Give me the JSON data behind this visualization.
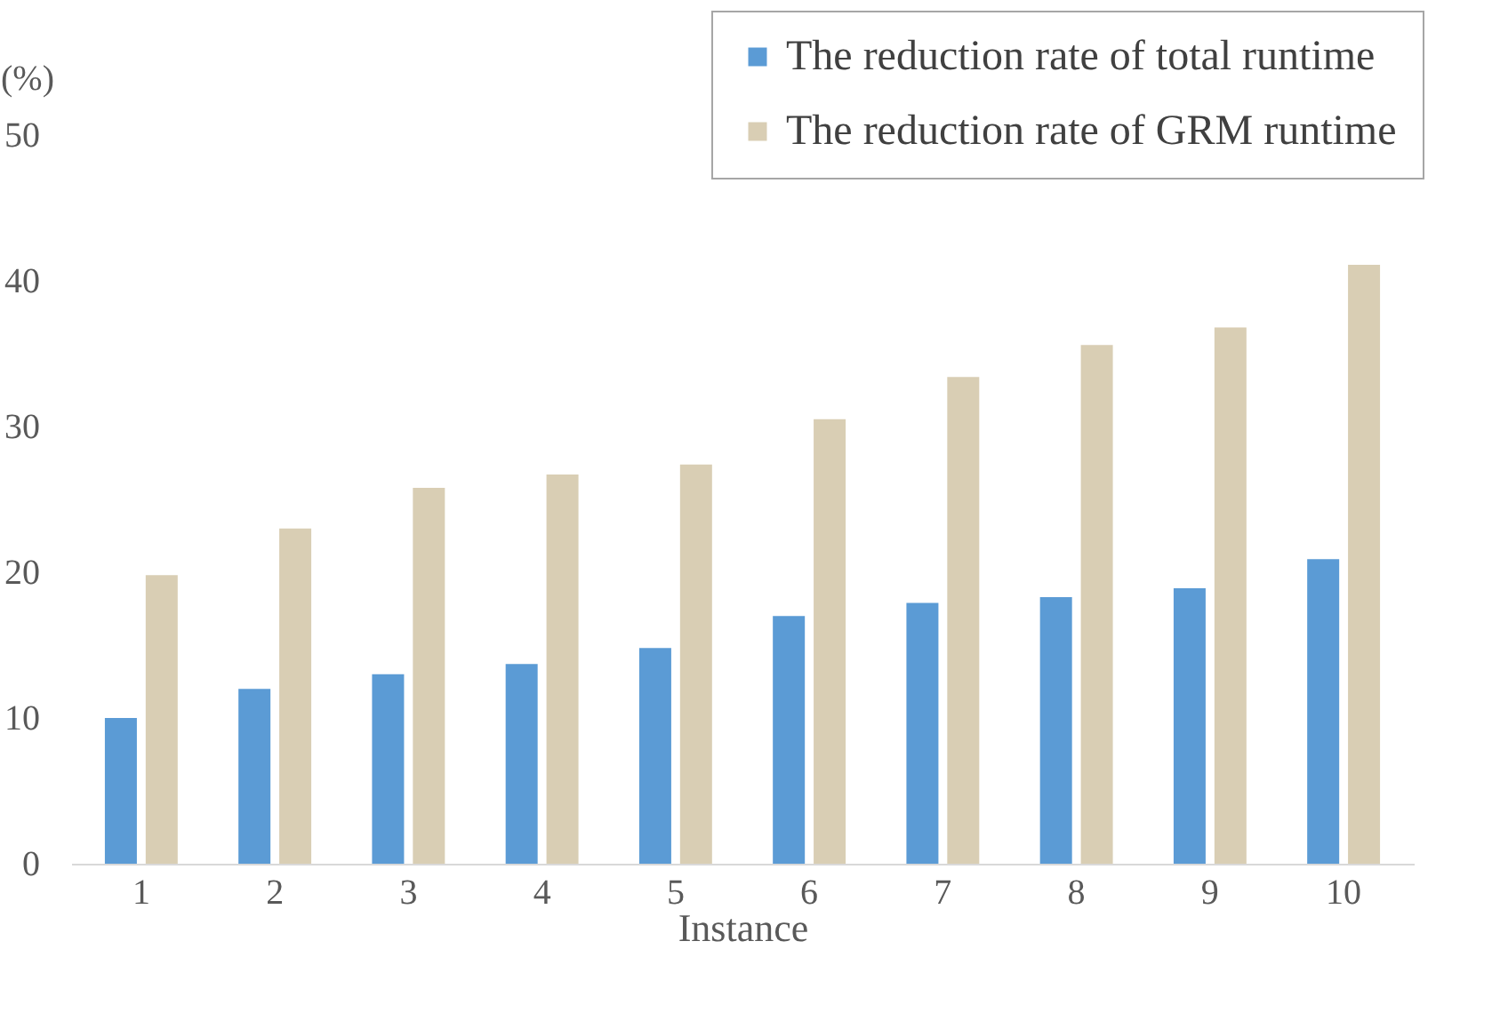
{
  "chart_data": {
    "type": "bar",
    "xlabel": "Instance",
    "ylabel": "(%)",
    "categories": [
      "1",
      "2",
      "3",
      "4",
      "5",
      "6",
      "7",
      "8",
      "9",
      "10"
    ],
    "series": [
      {
        "name": "The reduction rate of total runtime",
        "color": "#5b9bd5",
        "values": [
          10.0,
          12.0,
          13.0,
          13.7,
          14.8,
          17.0,
          17.9,
          18.3,
          18.9,
          20.9
        ]
      },
      {
        "name": "The reduction rate of GRM runtime",
        "color": "#d9ceb4",
        "values": [
          19.8,
          23.0,
          25.8,
          26.7,
          27.4,
          30.5,
          33.4,
          35.6,
          36.8,
          41.1
        ]
      }
    ],
    "ylim": [
      0,
      50
    ],
    "yticks": [
      0,
      10,
      20,
      30,
      40,
      50
    ],
    "grid": false,
    "legend": "top right"
  }
}
